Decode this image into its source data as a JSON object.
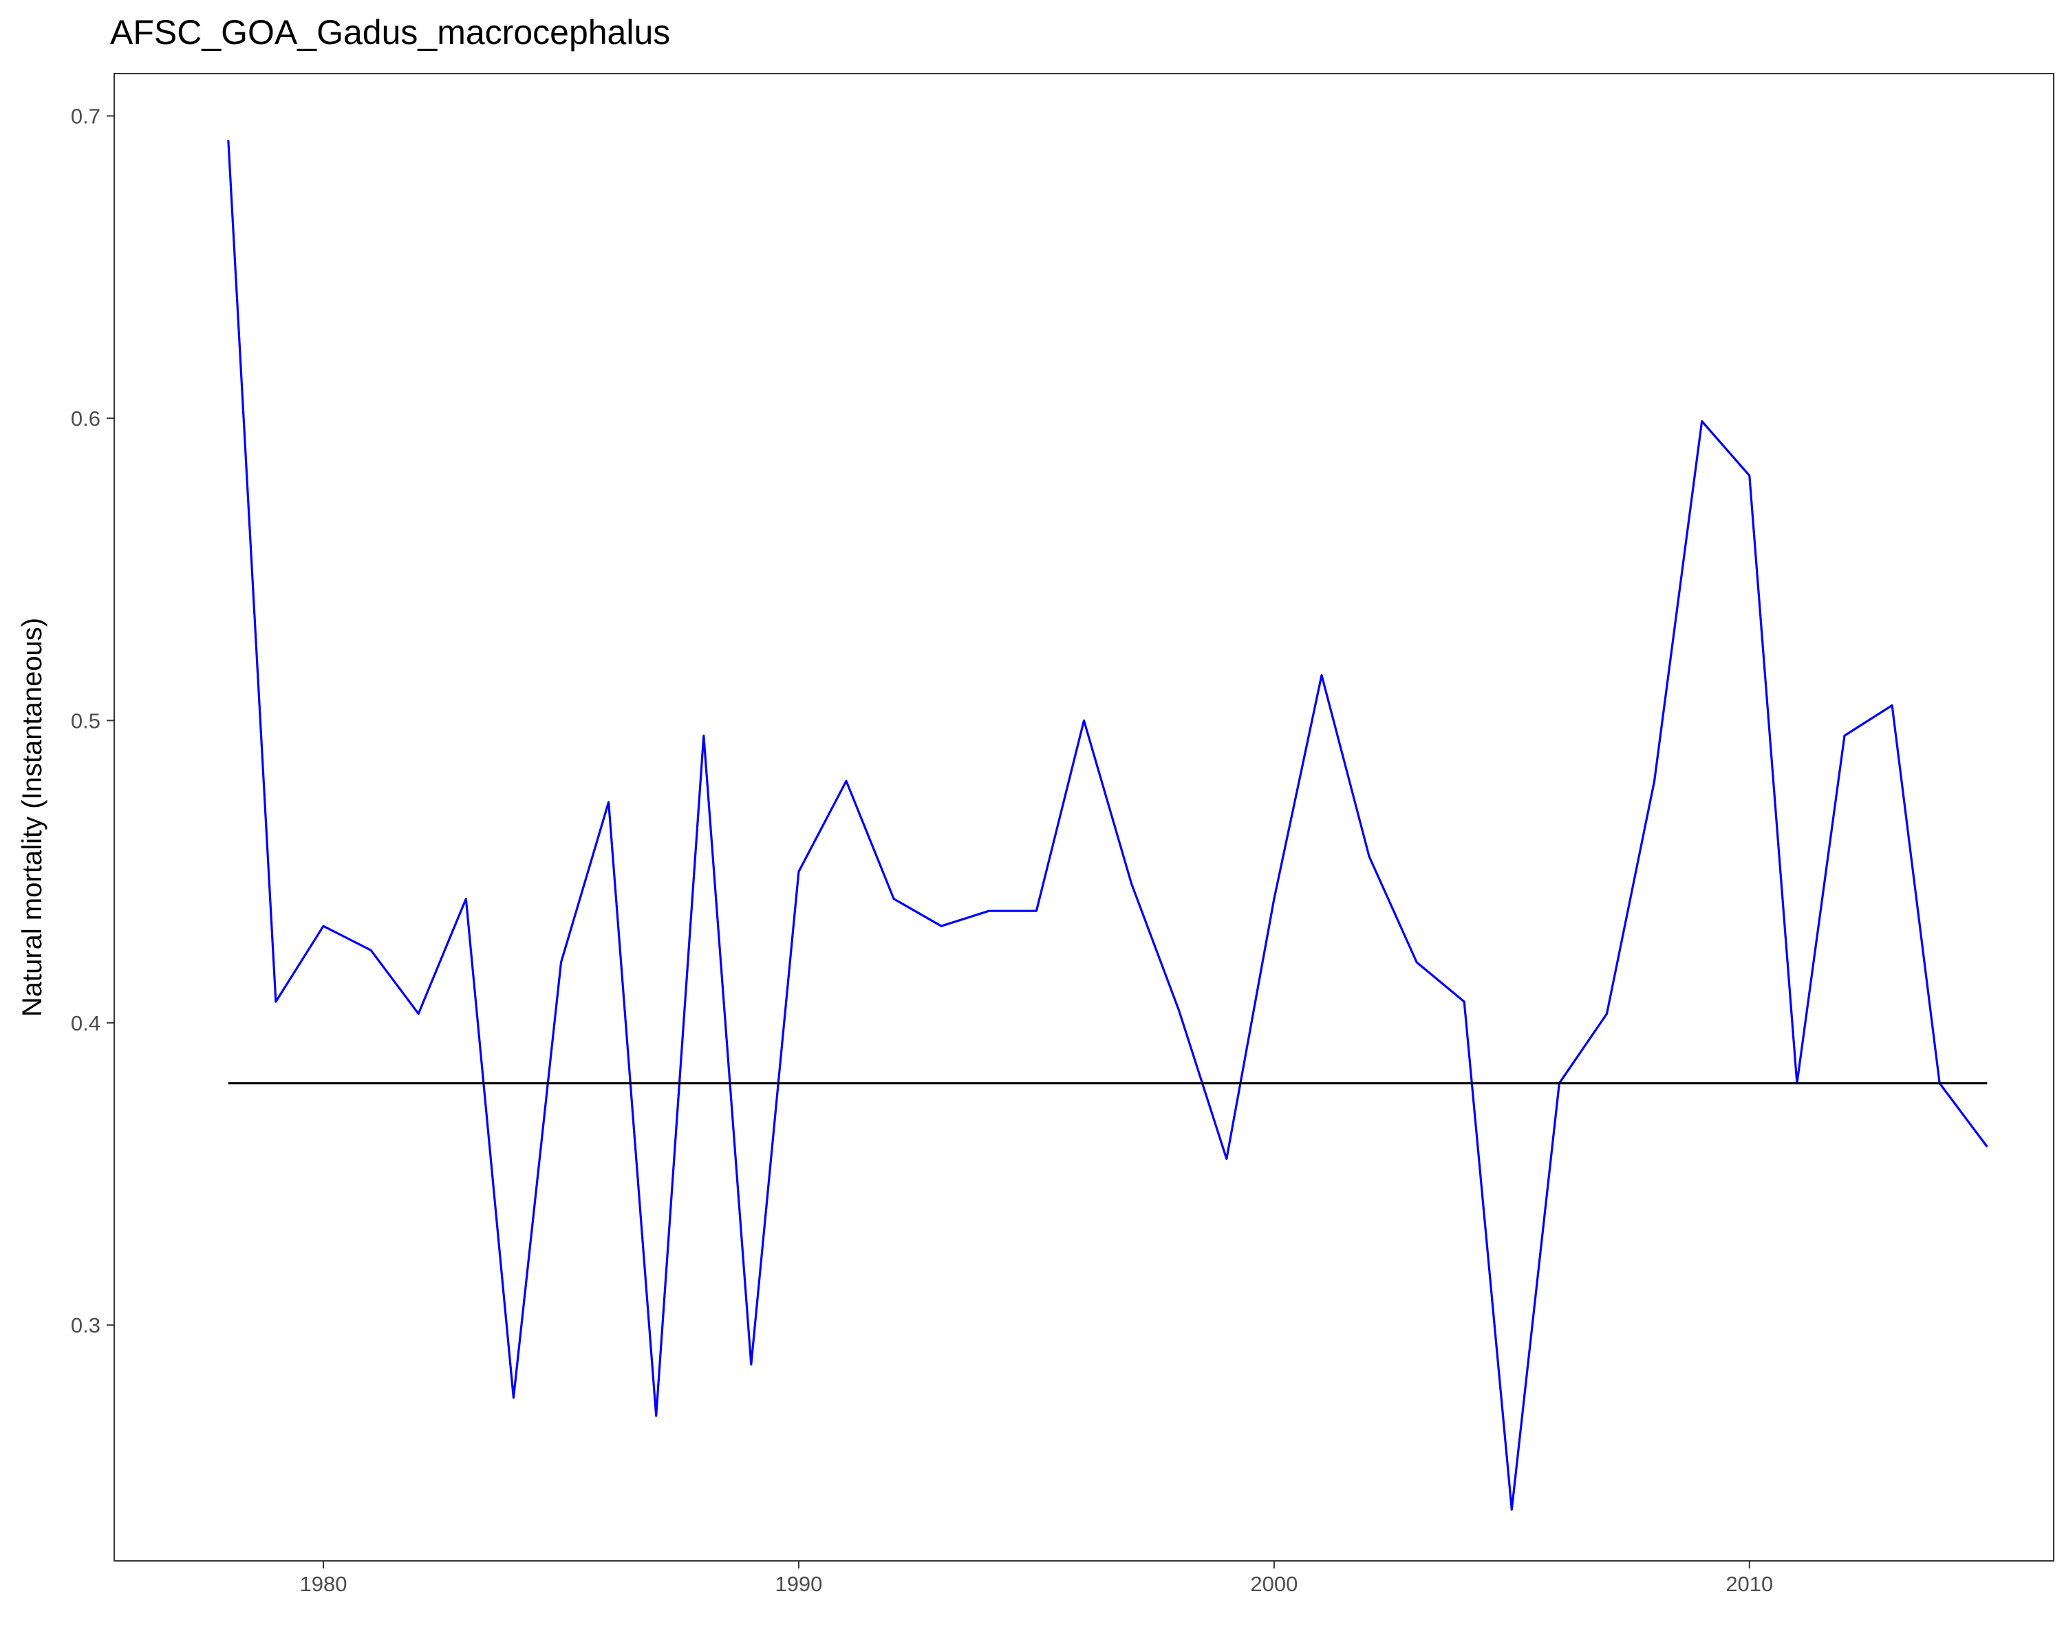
{
  "chart_data": {
    "type": "line",
    "title": "AFSC_GOA_Gadus_macrocephalus",
    "xlabel": "",
    "ylabel": "Natural mortality (Instantaneous)",
    "xlim": [
      1975.6,
      2016.4
    ],
    "ylim": [
      0.222,
      0.714
    ],
    "x_ticks": [
      "1980",
      "1990",
      "2000",
      "2010"
    ],
    "y_ticks": [
      "0.3",
      "0.4",
      "0.5",
      "0.6",
      "0.7"
    ],
    "grid": false,
    "legend": "none",
    "series": [
      {
        "color": "#0000ff",
        "x": [
          1978,
          1979,
          1980,
          1981,
          1982,
          1983,
          1984,
          1985,
          1986,
          1987,
          1988,
          1989,
          1990,
          1991,
          1992,
          1993,
          1994,
          1995,
          1996,
          1997,
          1998,
          1999,
          2000,
          2001,
          2002,
          2003,
          2004,
          2005,
          2006,
          2007,
          2008,
          2009,
          2010,
          2011,
          2012,
          2013,
          2014,
          2015
        ],
        "values": [
          0.692,
          0.407,
          0.432,
          0.424,
          0.403,
          0.441,
          0.276,
          0.42,
          0.473,
          0.27,
          0.495,
          0.287,
          0.45,
          0.48,
          0.441,
          0.432,
          0.437,
          0.437,
          0.5,
          0.446,
          0.404,
          0.355,
          0.441,
          0.515,
          0.455,
          0.42,
          0.407,
          0.239,
          0.38,
          0.403,
          0.48,
          0.599,
          0.581,
          0.38,
          0.495,
          0.505,
          0.38,
          0.359
        ]
      },
      {
        "color": "#000000",
        "x": [
          1978,
          2015
        ],
        "values": [
          0.38,
          0.38
        ]
      }
    ]
  }
}
